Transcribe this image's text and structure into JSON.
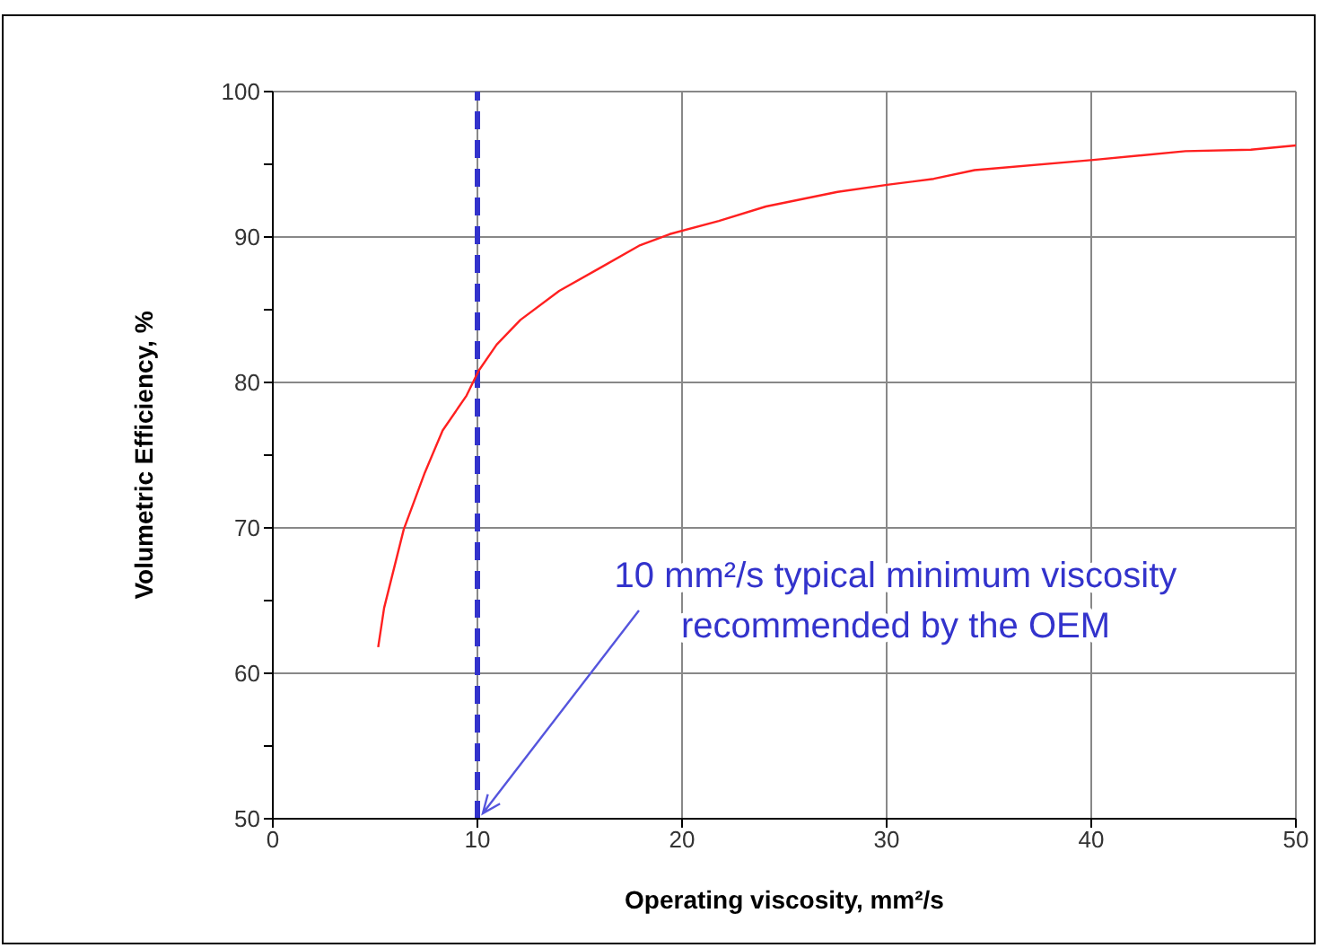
{
  "chart_data": {
    "type": "line",
    "xlabel": "Operating viscosity, mm²/s",
    "ylabel": "Volumetric Efficiency, %",
    "x": [
      5.15,
      5.44,
      6.4,
      7.43,
      8.3,
      9.47,
      10.06,
      10.94,
      12.1,
      14.0,
      15.9,
      17.9,
      19.4,
      21.8,
      24.1,
      27.6,
      30.1,
      32.3,
      34.3,
      40.1,
      44.6,
      47.8,
      50
    ],
    "series": [
      {
        "color": "#ff2020",
        "values": [
          61.8,
          64.5,
          69.9,
          73.8,
          76.7,
          79.1,
          80.8,
          82.6,
          84.3,
          86.3,
          87.8,
          89.4,
          90.2,
          91.1,
          92.1,
          93.1,
          93.6,
          94.0,
          94.6,
          95.3,
          95.9,
          96.0,
          96.3
        ]
      }
    ],
    "xlim": [
      0,
      50
    ],
    "xticks": [
      0,
      10,
      20,
      30,
      40,
      50
    ],
    "ylim": [
      50,
      100
    ],
    "yticks": [
      50,
      {
        "value": 55,
        "label": null
      },
      60,
      {
        "value": 65,
        "label": null
      },
      70,
      {
        "value": 75,
        "label": null
      },
      80,
      {
        "value": 85,
        "label": null
      },
      90,
      {
        "value": 95,
        "label": null
      },
      100
    ],
    "grid": true,
    "marker": "none",
    "line_style": "solid",
    "ref_lines": [
      {
        "axis": "x",
        "value": 10,
        "color": "#3333cc",
        "line_style": "dashed"
      }
    ],
    "annotations": [
      {
        "text": "10 mm²/s typical minimum viscosity\nrecommended by the OEM",
        "x": 10,
        "y": 50
      }
    ]
  }
}
